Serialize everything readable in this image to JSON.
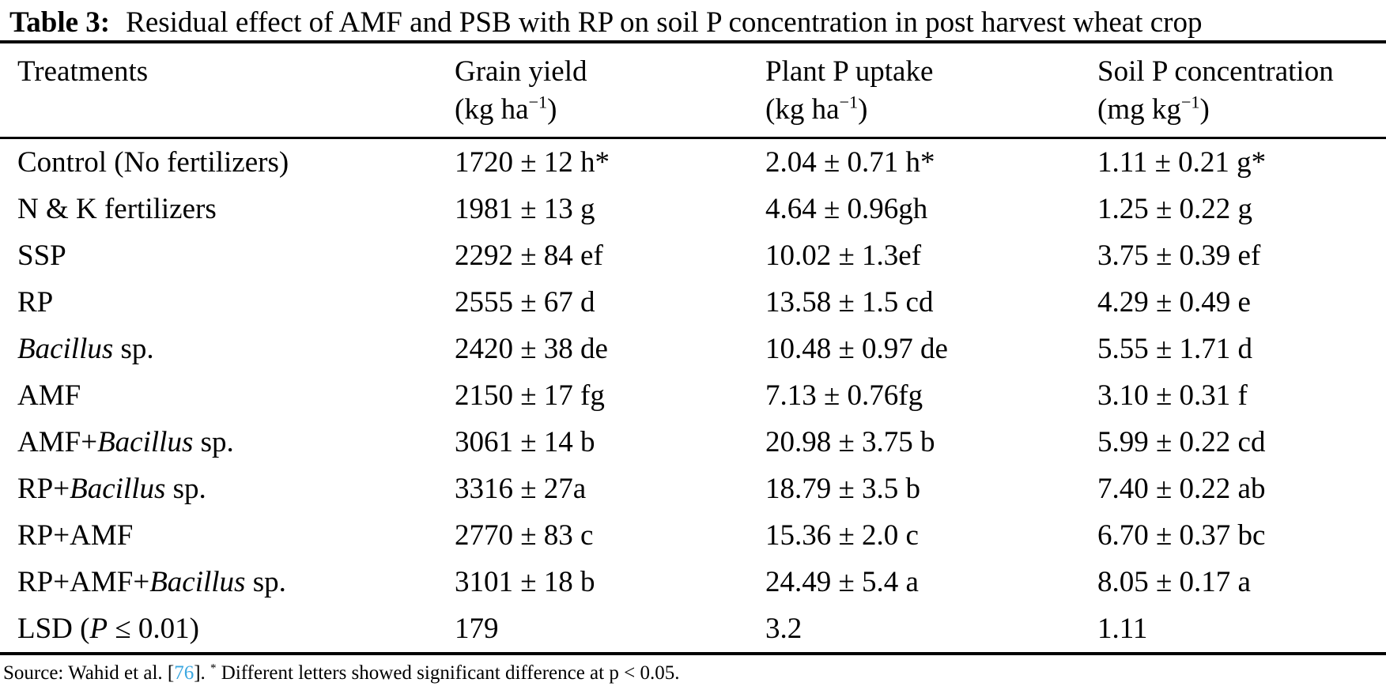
{
  "colors": {
    "citation_link": "#3ba7e0",
    "text": "#000000",
    "background": "#ffffff"
  },
  "title": {
    "label": "Table 3:",
    "text": "Residual effect of AMF and PSB with RP on soil P concentration in post harvest wheat crop"
  },
  "table": {
    "columns": [
      {
        "label": "Treatments"
      },
      {
        "label": "Grain yield",
        "unit": [
          {
            "t": "(kg ha"
          },
          {
            "t": "−1",
            "sup": true
          },
          {
            "t": ")"
          }
        ]
      },
      {
        "label": "Plant P uptake",
        "unit": [
          {
            "t": "(kg ha"
          },
          {
            "t": "−1",
            "sup": true
          },
          {
            "t": ")"
          }
        ]
      },
      {
        "label": "Soil P concentration",
        "unit": [
          {
            "t": "(mg kg"
          },
          {
            "t": "−1",
            "sup": true
          },
          {
            "t": ")"
          }
        ]
      }
    ],
    "rows": [
      {
        "treatment": [
          {
            "t": "Control (No fertilizers)"
          }
        ],
        "grain_yield": "1720 ± 12 h*",
        "plant_p_uptake": "2.04 ± 0.71 h*",
        "soil_p": "1.11 ± 0.21 g*"
      },
      {
        "treatment": [
          {
            "t": "N & K fertilizers"
          }
        ],
        "grain_yield": "1981 ± 13 g",
        "plant_p_uptake": "4.64 ± 0.96gh",
        "soil_p": "1.25 ± 0.22 g"
      },
      {
        "treatment": [
          {
            "t": "SSP"
          }
        ],
        "grain_yield": "2292 ± 84 ef",
        "plant_p_uptake": "10.02 ± 1.3ef",
        "soil_p": "3.75 ± 0.39 ef"
      },
      {
        "treatment": [
          {
            "t": "RP"
          }
        ],
        "grain_yield": "2555 ± 67 d",
        "plant_p_uptake": "13.58 ± 1.5 cd",
        "soil_p": "4.29 ± 0.49 e"
      },
      {
        "treatment": [
          {
            "t": "Bacillus",
            "i": true
          },
          {
            "t": " sp."
          }
        ],
        "grain_yield": "2420 ± 38 de",
        "plant_p_uptake": "10.48 ± 0.97 de",
        "soil_p": "5.55 ± 1.71 d"
      },
      {
        "treatment": [
          {
            "t": "AMF"
          }
        ],
        "grain_yield": "2150 ± 17 fg",
        "plant_p_uptake": "7.13 ± 0.76fg",
        "soil_p": "3.10 ± 0.31 f"
      },
      {
        "treatment": [
          {
            "t": "AMF+"
          },
          {
            "t": "Bacillus",
            "i": true
          },
          {
            "t": " sp."
          }
        ],
        "grain_yield": "3061 ± 14 b",
        "plant_p_uptake": "20.98 ± 3.75 b",
        "soil_p": "5.99 ± 0.22 cd"
      },
      {
        "treatment": [
          {
            "t": "RP+"
          },
          {
            "t": "Bacillus",
            "i": true
          },
          {
            "t": " sp."
          }
        ],
        "grain_yield": "3316 ± 27a",
        "plant_p_uptake": "18.79 ± 3.5 b",
        "soil_p": "7.40 ± 0.22 ab"
      },
      {
        "treatment": [
          {
            "t": "RP+AMF"
          }
        ],
        "grain_yield": "2770 ± 83 c",
        "plant_p_uptake": "15.36 ± 2.0 c",
        "soil_p": "6.70 ± 0.37 bc"
      },
      {
        "treatment": [
          {
            "t": "RP+AMF+"
          },
          {
            "t": "Bacillus",
            "i": true
          },
          {
            "t": " sp."
          }
        ],
        "grain_yield": "3101 ± 18 b",
        "plant_p_uptake": "24.49 ± 5.4 a",
        "soil_p": "8.05 ± 0.17 a"
      },
      {
        "treatment": [
          {
            "t": "LSD ("
          },
          {
            "t": "P",
            "i": true
          },
          {
            "t": " ≤ 0.01)"
          }
        ],
        "grain_yield": "179",
        "plant_p_uptake": "3.2",
        "soil_p": "1.11"
      }
    ]
  },
  "footer": {
    "segments": [
      {
        "t": "Source: Wahid et al. ["
      },
      {
        "t": "76",
        "link": true
      },
      {
        "t": "]. "
      },
      {
        "t": "*",
        "sup": true
      },
      {
        "t": " Different letters showed significant difference at p < 0.05."
      }
    ]
  }
}
